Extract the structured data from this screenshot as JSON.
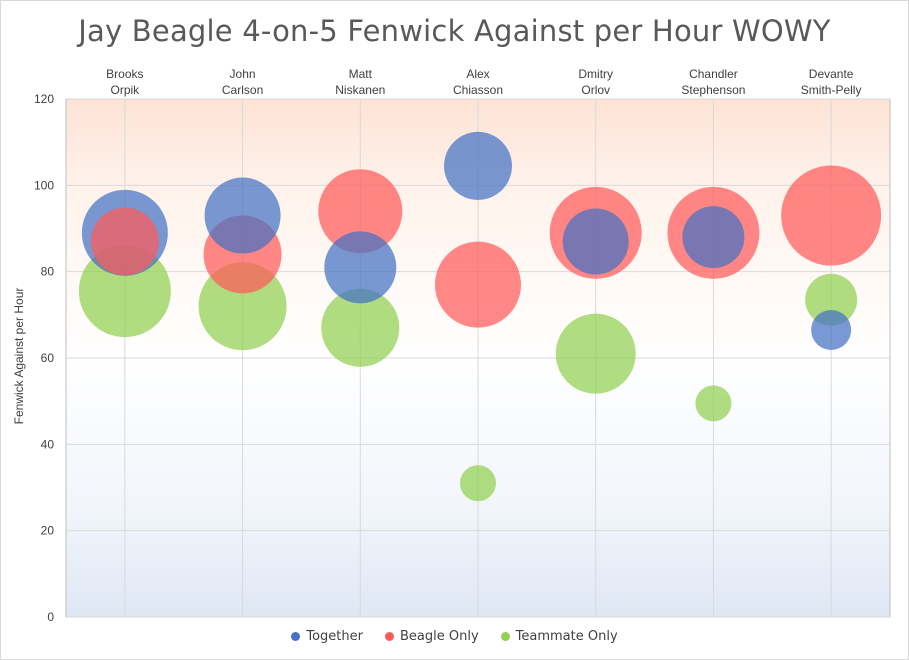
{
  "chart_data": {
    "type": "bubble",
    "title": "Jay Beagle 4-on-5 Fenwick Against per Hour WOWY",
    "ylabel": "Fenwick Against per Hour",
    "ylim": [
      0,
      120
    ],
    "yticks": [
      0,
      20,
      40,
      60,
      80,
      100,
      120
    ],
    "grid": true,
    "legend_position": "bottom",
    "categories": [
      [
        "Brooks",
        "Orpik"
      ],
      [
        "John",
        "Carlson"
      ],
      [
        "Matt",
        "Niskanen"
      ],
      [
        "Alex",
        "Chiasson"
      ],
      [
        "Dmitry",
        "Orlov"
      ],
      [
        "Chandler",
        "Stephenson"
      ],
      [
        "Devante",
        "Smith-Pelly"
      ]
    ],
    "series": [
      {
        "name": "Together",
        "color": "#4472c4",
        "values": [
          89,
          93,
          81,
          104.5,
          87,
          88,
          66.5
        ],
        "sizes": [
          43,
          38,
          36,
          34,
          33,
          31,
          20
        ]
      },
      {
        "name": "Beagle Only",
        "color": "#ff5a5a",
        "values": [
          87,
          84,
          94,
          77,
          89,
          89,
          93
        ],
        "sizes": [
          34,
          39,
          42,
          43,
          46,
          46,
          50
        ]
      },
      {
        "name": "Teammate Only",
        "color": "#92d050",
        "values": [
          75.5,
          72,
          67,
          31,
          61,
          49.5,
          73.5
        ],
        "sizes": [
          46,
          44,
          39,
          18,
          40,
          18,
          26
        ]
      }
    ]
  }
}
